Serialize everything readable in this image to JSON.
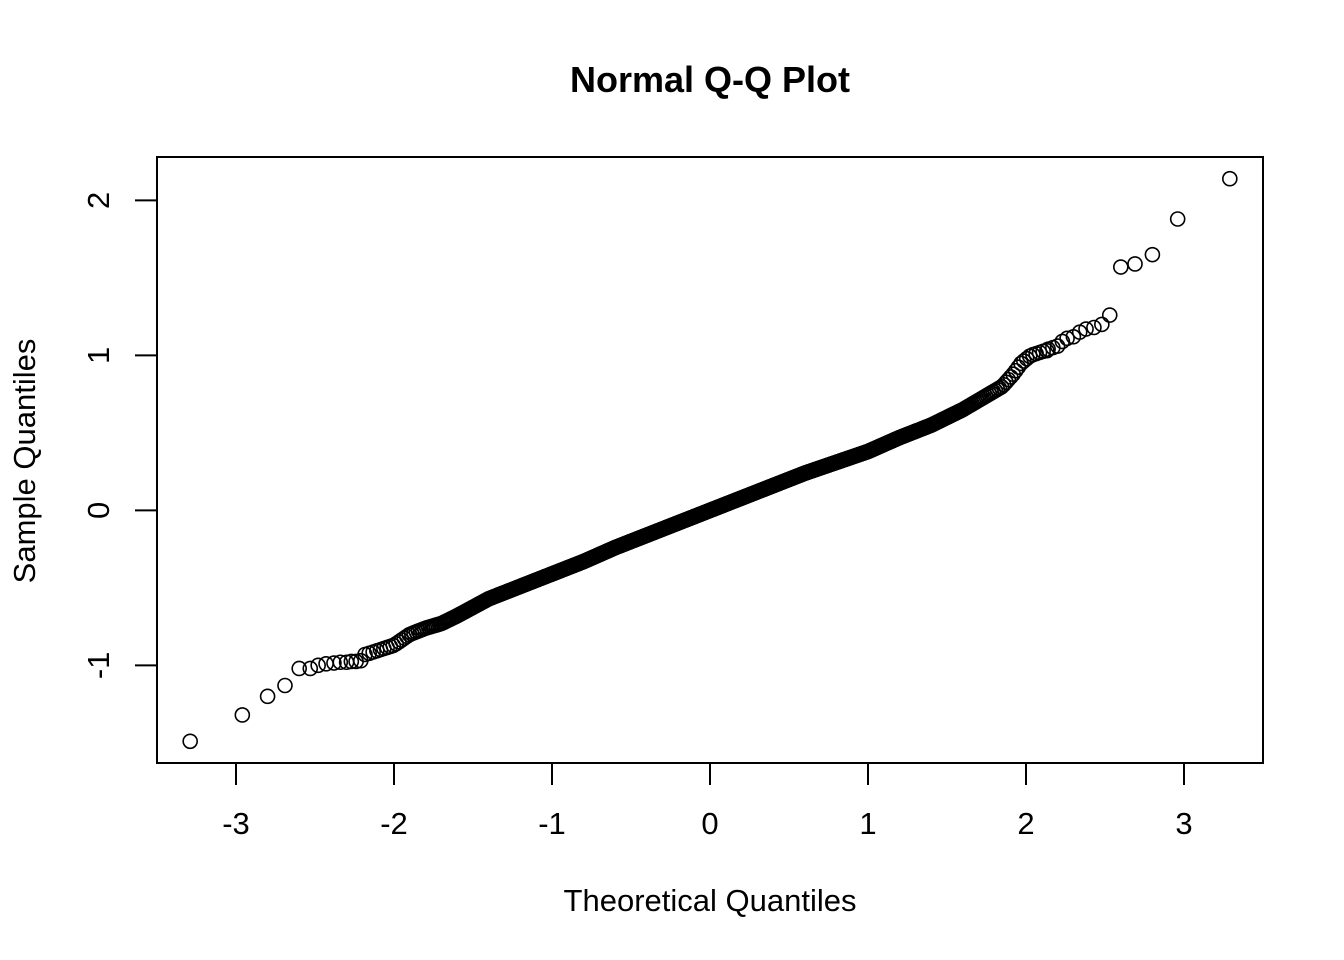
{
  "chart_data": {
    "type": "scatter",
    "title": "Normal Q-Q Plot",
    "xlabel": "Theoretical Quantiles",
    "ylabel": "Sample Quantiles",
    "xlim": [
      -3.5,
      3.5
    ],
    "ylim": [
      -1.63,
      2.28
    ],
    "x_ticks": [
      -3,
      -2,
      -1,
      0,
      1,
      2,
      3
    ],
    "x_tick_labels": [
      "-3",
      "-2",
      "-1",
      "0",
      "1",
      "2",
      "3"
    ],
    "y_ticks": [
      -1,
      0,
      1,
      2
    ],
    "y_tick_labels": [
      "-1",
      "0",
      "1",
      "2"
    ],
    "grid": false,
    "legend": "none",
    "marker": "open-circle",
    "point_color": "#000000",
    "n_points": 1000,
    "outliers_low": [
      {
        "x": -3.29,
        "y": -1.49
      },
      {
        "x": -2.96,
        "y": -1.32
      },
      {
        "x": -2.8,
        "y": -1.2
      },
      {
        "x": -2.69,
        "y": -1.13
      },
      {
        "x": -2.6,
        "y": -1.02
      },
      {
        "x": -2.53,
        "y": -1.02
      },
      {
        "x": -2.48,
        "y": -1.0
      },
      {
        "x": -2.43,
        "y": -0.99
      },
      {
        "x": -2.38,
        "y": -0.985
      },
      {
        "x": -2.34,
        "y": -0.98
      },
      {
        "x": -2.3,
        "y": -0.98
      },
      {
        "x": -2.27,
        "y": -0.975
      },
      {
        "x": -2.24,
        "y": -0.975
      },
      {
        "x": -2.21,
        "y": -0.97
      }
    ],
    "outliers_high": [
      {
        "x": 3.29,
        "y": 2.14
      },
      {
        "x": 2.96,
        "y": 1.88
      },
      {
        "x": 2.8,
        "y": 1.65
      },
      {
        "x": 2.69,
        "y": 1.59
      },
      {
        "x": 2.6,
        "y": 1.57
      },
      {
        "x": 2.53,
        "y": 1.26
      },
      {
        "x": 2.48,
        "y": 1.2
      },
      {
        "x": 2.43,
        "y": 1.18
      },
      {
        "x": 2.38,
        "y": 1.17
      },
      {
        "x": 2.34,
        "y": 1.15
      },
      {
        "x": 2.3,
        "y": 1.12
      },
      {
        "x": 2.26,
        "y": 1.11
      },
      {
        "x": 2.23,
        "y": 1.09
      },
      {
        "x": 2.2,
        "y": 1.06
      },
      {
        "x": 2.17,
        "y": 1.05
      },
      {
        "x": 2.14,
        "y": 1.04
      }
    ],
    "body_curve": [
      {
        "x": -2.18,
        "y": -0.93
      },
      {
        "x": -2.0,
        "y": -0.87
      },
      {
        "x": -1.9,
        "y": -0.8
      },
      {
        "x": -1.8,
        "y": -0.76
      },
      {
        "x": -1.7,
        "y": -0.73
      },
      {
        "x": -1.6,
        "y": -0.68
      },
      {
        "x": -1.4,
        "y": -0.57
      },
      {
        "x": -1.2,
        "y": -0.49
      },
      {
        "x": -1.0,
        "y": -0.41
      },
      {
        "x": -0.8,
        "y": -0.33
      },
      {
        "x": -0.6,
        "y": -0.24
      },
      {
        "x": -0.4,
        "y": -0.16
      },
      {
        "x": -0.2,
        "y": -0.08
      },
      {
        "x": 0.0,
        "y": 0.0
      },
      {
        "x": 0.2,
        "y": 0.08
      },
      {
        "x": 0.4,
        "y": 0.16
      },
      {
        "x": 0.6,
        "y": 0.24
      },
      {
        "x": 0.8,
        "y": 0.31
      },
      {
        "x": 1.0,
        "y": 0.38
      },
      {
        "x": 1.2,
        "y": 0.47
      },
      {
        "x": 1.4,
        "y": 0.55
      },
      {
        "x": 1.6,
        "y": 0.65
      },
      {
        "x": 1.75,
        "y": 0.74
      },
      {
        "x": 1.85,
        "y": 0.8
      },
      {
        "x": 1.92,
        "y": 0.88
      },
      {
        "x": 1.97,
        "y": 0.95
      },
      {
        "x": 2.03,
        "y": 1.0
      },
      {
        "x": 2.12,
        "y": 1.03
      }
    ]
  }
}
